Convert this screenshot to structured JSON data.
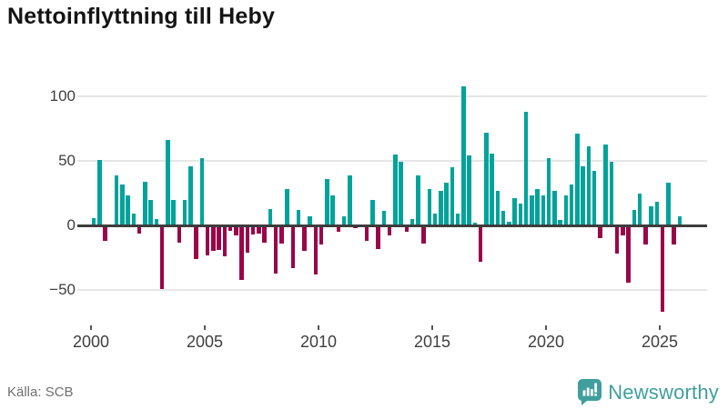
{
  "title": "Nettoinflyttning till Heby",
  "source": "Källa: SCB",
  "brand": {
    "name": "Newsworthy",
    "icon": "newsworthy-logo-icon",
    "color": "#3f9f9c"
  },
  "chart_data": {
    "type": "bar",
    "title": "Nettoinflyttning till Heby",
    "xlabel": "",
    "ylabel": "",
    "frequency": "quarterly",
    "start_year": 2000,
    "end_year": 2025,
    "x_tick_labels": [
      "2000",
      "2005",
      "2010",
      "2015",
      "2020",
      "2025"
    ],
    "x_tick_years": [
      2000,
      2005,
      2010,
      2015,
      2020,
      2025
    ],
    "y_ticks": [
      100,
      50,
      0,
      -50
    ],
    "y_tick_labels": [
      "100",
      "50",
      "0",
      "−50"
    ],
    "ylim": [
      -75,
      118
    ],
    "grid": true,
    "legend": "none",
    "colors": {
      "positive": "#00a39b",
      "negative": "#9a0549"
    },
    "series": [
      {
        "name": "Nettoinflyttning",
        "values": [
          6,
          51,
          -12,
          0,
          39,
          32,
          23,
          9,
          -6,
          34,
          20,
          5,
          -49,
          66,
          20,
          -13,
          20,
          46,
          -26,
          52,
          -23,
          -20,
          -19,
          -24,
          -4,
          -8,
          -42,
          -21,
          -7,
          -6,
          -13,
          13,
          -37,
          -14,
          28,
          -33,
          12,
          -20,
          7,
          -38,
          -15,
          36,
          23,
          -5,
          7,
          39,
          -2,
          0,
          -12,
          20,
          -18,
          11,
          -8,
          55,
          49,
          -5,
          5,
          39,
          -14,
          28,
          9,
          27,
          33,
          45,
          9,
          108,
          54,
          2,
          -28,
          72,
          56,
          27,
          11,
          3,
          21,
          17,
          88,
          23,
          28,
          23,
          52,
          27,
          4,
          23,
          32,
          71,
          46,
          61,
          42,
          -10,
          63,
          49,
          -22,
          -8,
          -44,
          12,
          25,
          -15,
          15,
          18,
          -67,
          33,
          -15,
          7
        ]
      }
    ]
  }
}
